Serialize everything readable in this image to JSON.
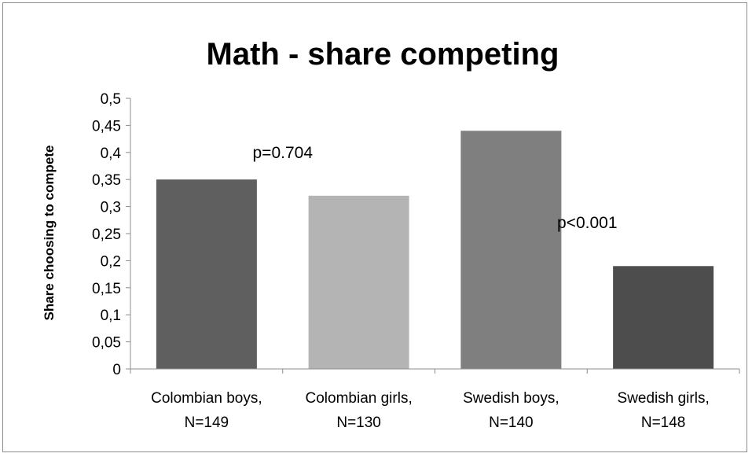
{
  "chart_data": {
    "type": "bar",
    "title": "Math - share competing",
    "ylabel": "Share choosing to compete",
    "xlabel": "",
    "categories": [
      [
        "Colombian boys,",
        "N=149"
      ],
      [
        "Colombian girls,",
        "N=130"
      ],
      [
        "Swedish boys,",
        "N=140"
      ],
      [
        "Swedish girls,",
        "N=148"
      ]
    ],
    "values": [
      0.35,
      0.32,
      0.44,
      0.19
    ],
    "colors": [
      "#5f5f5f",
      "#b4b4b4",
      "#7f7f7f",
      "#4d4d4d"
    ],
    "ylim": [
      0,
      0.5
    ],
    "yticks": [
      "0",
      "0,05",
      "0,1",
      "0,15",
      "0,2",
      "0,25",
      "0,3",
      "0,35",
      "0,4",
      "0,45",
      "0,5"
    ],
    "grid": false,
    "legend": "none",
    "annotations": [
      {
        "text": "p=0.704",
        "between": [
          0,
          1
        ],
        "y": 0.4
      },
      {
        "text": "p<0.001",
        "between": [
          2,
          3
        ],
        "y": 0.27
      }
    ]
  }
}
